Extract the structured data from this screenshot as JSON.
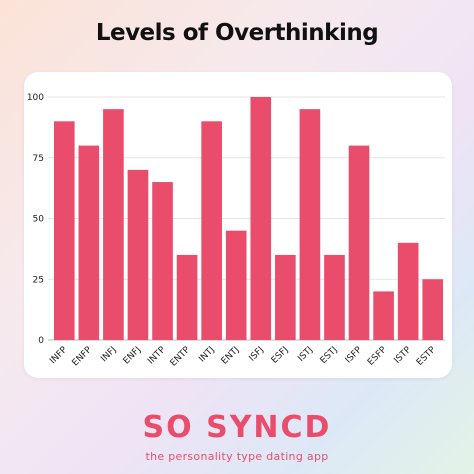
{
  "brand": {
    "name": "SO SYNCD",
    "tagline": "the personality type dating app",
    "color": "#ea4d6c"
  },
  "chart_data": {
    "type": "bar",
    "title": "Levels of Overthinking",
    "categories": [
      "INFP",
      "ENFP",
      "INFJ",
      "ENFJ",
      "INTP",
      "ENTP",
      "INTJ",
      "ENTJ",
      "ISFJ",
      "ESFJ",
      "ISTJ",
      "ESTJ",
      "ISFP",
      "ESFP",
      "ISTP",
      "ESTP"
    ],
    "values": [
      90,
      80,
      95,
      70,
      65,
      35,
      90,
      45,
      100,
      35,
      95,
      35,
      80,
      20,
      40,
      25
    ],
    "yticks": [
      0,
      25,
      50,
      75,
      100
    ],
    "ylim": [
      0,
      100
    ],
    "grid": true,
    "bar_color": "#ea4d6c"
  }
}
